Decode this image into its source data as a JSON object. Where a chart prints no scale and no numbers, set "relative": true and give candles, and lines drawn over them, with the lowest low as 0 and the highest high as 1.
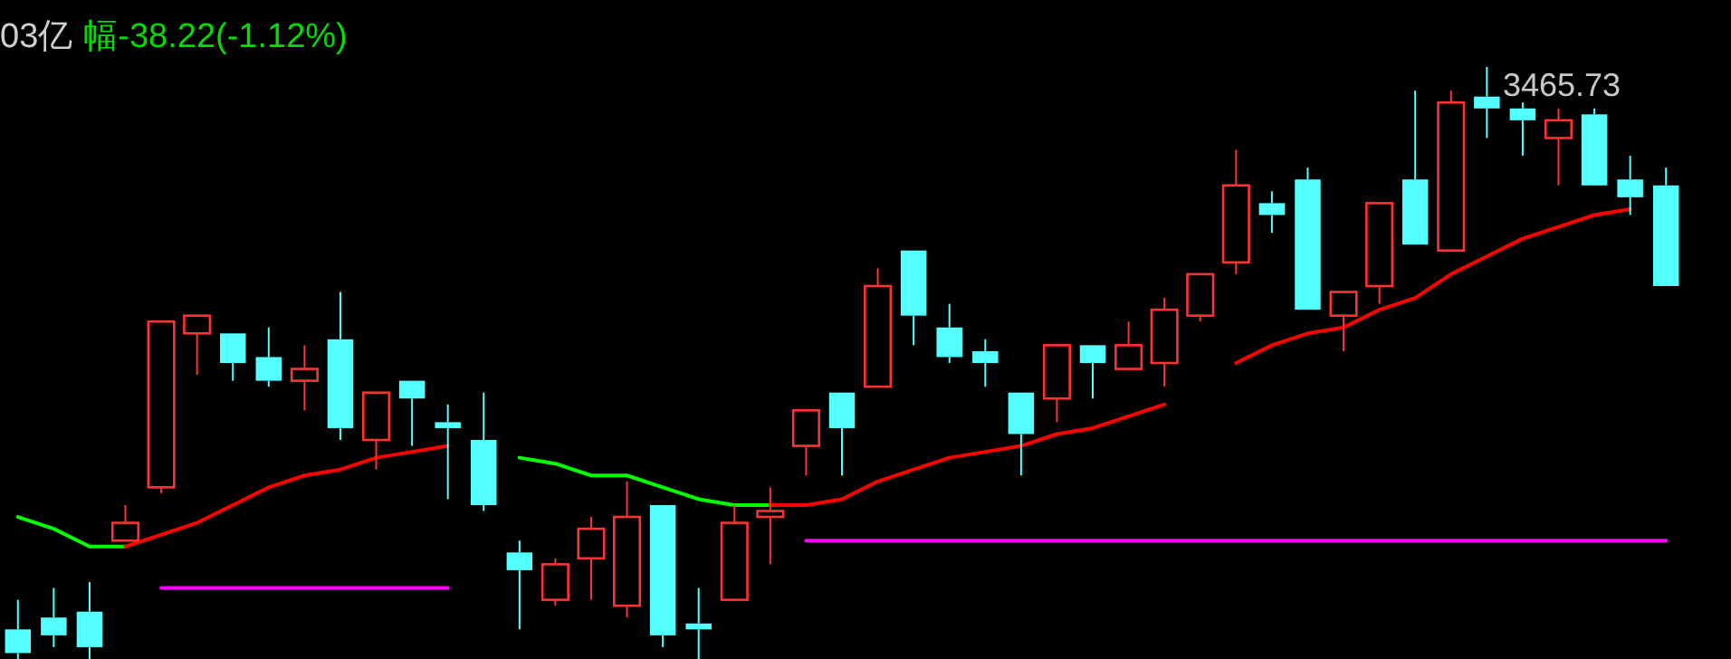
{
  "chart_data": {
    "type": "candlestick",
    "relative": true,
    "categories": [
      null,
      null,
      null,
      null,
      null,
      null,
      null,
      null,
      null,
      null,
      null,
      null,
      null,
      null,
      null,
      null,
      null,
      null,
      null,
      null,
      null,
      null,
      null,
      null,
      null,
      null,
      null,
      null,
      null,
      null,
      null,
      null,
      null,
      null,
      null,
      null,
      null,
      null,
      null,
      null,
      null,
      null,
      null,
      null,
      null,
      null,
      null
    ],
    "ohlc": [
      [
        0.05,
        0.1,
        0,
        0.01
      ],
      [
        0.07,
        0.12,
        0.02,
        0.04
      ],
      [
        0.08,
        0.13,
        0,
        0.02
      ],
      [
        0.2,
        0.26,
        0.2,
        0.23
      ],
      [
        0.29,
        0.57,
        0.28,
        0.57
      ],
      [
        0.55,
        0.58,
        0.48,
        0.58
      ],
      [
        0.55,
        0.55,
        0.47,
        0.5
      ],
      [
        0.51,
        0.56,
        0.46,
        0.47
      ],
      [
        0.47,
        0.53,
        0.42,
        0.49
      ],
      [
        0.54,
        0.62,
        0.37,
        0.39
      ],
      [
        0.37,
        0.45,
        0.32,
        0.45
      ],
      [
        0.47,
        0.47,
        0.36,
        0.44
      ],
      [
        0.4,
        0.43,
        0.27,
        0.39
      ],
      [
        0.37,
        0.45,
        0.25,
        0.26
      ],
      [
        0.18,
        0.2,
        0.05,
        0.15
      ],
      [
        0.1,
        0.17,
        0.09,
        0.16
      ],
      [
        0.17,
        0.24,
        0.1,
        0.22
      ],
      [
        0.09,
        0.3,
        0.07,
        0.24
      ],
      [
        0.26,
        0.26,
        0.02,
        0.04
      ],
      [
        0.06,
        0.12,
        0,
        0.05
      ],
      [
        0.1,
        0.26,
        0.1,
        0.23
      ],
      [
        0.24,
        0.29,
        0.16,
        0.25
      ],
      [
        0.36,
        0.42,
        0.31,
        0.42
      ],
      [
        0.45,
        0.45,
        0.31,
        0.39
      ],
      [
        0.46,
        0.66,
        0.46,
        0.63
      ],
      [
        0.69,
        0.69,
        0.53,
        0.58
      ],
      [
        0.56,
        0.6,
        0.5,
        0.51
      ],
      [
        0.52,
        0.54,
        0.46,
        0.5
      ],
      [
        0.45,
        0.45,
        0.31,
        0.38
      ],
      [
        0.44,
        0.53,
        0.4,
        0.53
      ],
      [
        0.53,
        0.53,
        0.44,
        0.5
      ],
      [
        0.49,
        0.57,
        0.49,
        0.53
      ],
      [
        0.5,
        0.61,
        0.46,
        0.59
      ],
      [
        0.58,
        0.65,
        0.57,
        0.65
      ],
      [
        0.67,
        0.86,
        0.65,
        0.8
      ],
      [
        0.77,
        0.79,
        0.72,
        0.75
      ],
      [
        0.81,
        0.83,
        0.59,
        0.59
      ],
      [
        0.58,
        0.62,
        0.52,
        0.62
      ],
      [
        0.63,
        0.77,
        0.6,
        0.77
      ],
      [
        0.81,
        0.96,
        0.7,
        0.7
      ],
      [
        0.69,
        0.96,
        0.69,
        0.94
      ],
      [
        0.95,
        1,
        0.88,
        0.93
      ],
      [
        0.93,
        0.94,
        0.85,
        0.91
      ],
      [
        0.88,
        0.93,
        0.8,
        0.91
      ],
      [
        0.92,
        0.93,
        0.8,
        0.8
      ],
      [
        0.81,
        0.85,
        0.75,
        0.78
      ],
      [
        0.8,
        0.83,
        0.63,
        0.63
      ]
    ],
    "colors": [
      "#54ffff",
      "#54ffff",
      "#54ffff",
      "#ff3232",
      "#ff3232",
      "#ff3232",
      "#54ffff",
      "#54ffff",
      "#ff3232",
      "#54ffff",
      "#ff3232",
      "#54ffff",
      "#54ffff",
      "#54ffff",
      "#54ffff",
      "#ff3232",
      "#ff3232",
      "#ff3232",
      "#54ffff",
      "#54ffff",
      "#ff3232",
      "#ff3232",
      "#ff3232",
      "#54ffff",
      "#ff3232",
      "#54ffff",
      "#54ffff",
      "#54ffff",
      "#54ffff",
      "#ff3232",
      "#54ffff",
      "#ff3232",
      "#ff3232",
      "#ff3232",
      "#ff3232",
      "#54ffff",
      "#54ffff",
      "#ff3232",
      "#ff3232",
      "#54ffff",
      "#ff3232",
      "#54ffff",
      "#54ffff",
      "#ff3232",
      "#54ffff",
      "#54ffff",
      "#54ffff"
    ],
    "series": [
      {
        "type": "line",
        "color": "#00ff00",
        "values": [
          0.24,
          0.22,
          0.19,
          0.19,
          null,
          null,
          null,
          null,
          null,
          null,
          null,
          null,
          null,
          null,
          0.34,
          0.33,
          0.31,
          0.31,
          0.29,
          0.27,
          0.26,
          0.26,
          null,
          null,
          null,
          null,
          null,
          null,
          null,
          null,
          null,
          null,
          null,
          null,
          null,
          null,
          null,
          null,
          null,
          null,
          null,
          null,
          null,
          null,
          null,
          null,
          null
        ]
      },
      {
        "type": "line",
        "color": "#ff0000",
        "values": [
          null,
          null,
          null,
          0.19,
          0.21,
          0.23,
          0.26,
          0.29,
          0.31,
          0.32,
          0.34,
          0.35,
          0.36,
          null,
          null,
          null,
          null,
          null,
          null,
          null,
          null,
          0.26,
          0.26,
          0.27,
          0.3,
          0.32,
          0.34,
          0.35,
          0.36,
          0.38,
          0.39,
          0.41,
          0.43,
          null,
          0.5,
          0.53,
          0.55,
          0.56,
          0.59,
          0.61,
          0.65,
          0.68,
          0.71,
          0.73,
          0.75,
          0.76,
          null
        ]
      },
      {
        "type": "line",
        "color": "#ff00ff",
        "values": [
          null,
          null,
          null,
          null,
          0.12,
          0.12,
          0.12,
          0.12,
          0.12,
          0.12,
          0.12,
          0.12,
          0.12,
          null,
          null,
          null,
          null,
          null,
          null,
          null,
          null,
          null,
          0.2,
          0.2,
          0.2,
          0.2,
          0.2,
          0.2,
          0.2,
          0.2,
          0.2,
          0.2,
          0.2,
          0.2,
          0.2,
          0.2,
          0.2,
          0.2,
          0.2,
          0.2,
          0.2,
          0.2,
          0.2,
          0.2,
          0.2,
          0.2,
          0.2
        ]
      }
    ],
    "annotations": [
      "03亿",
      "幅-38.22(-1.12%)",
      "3465.73"
    ]
  }
}
